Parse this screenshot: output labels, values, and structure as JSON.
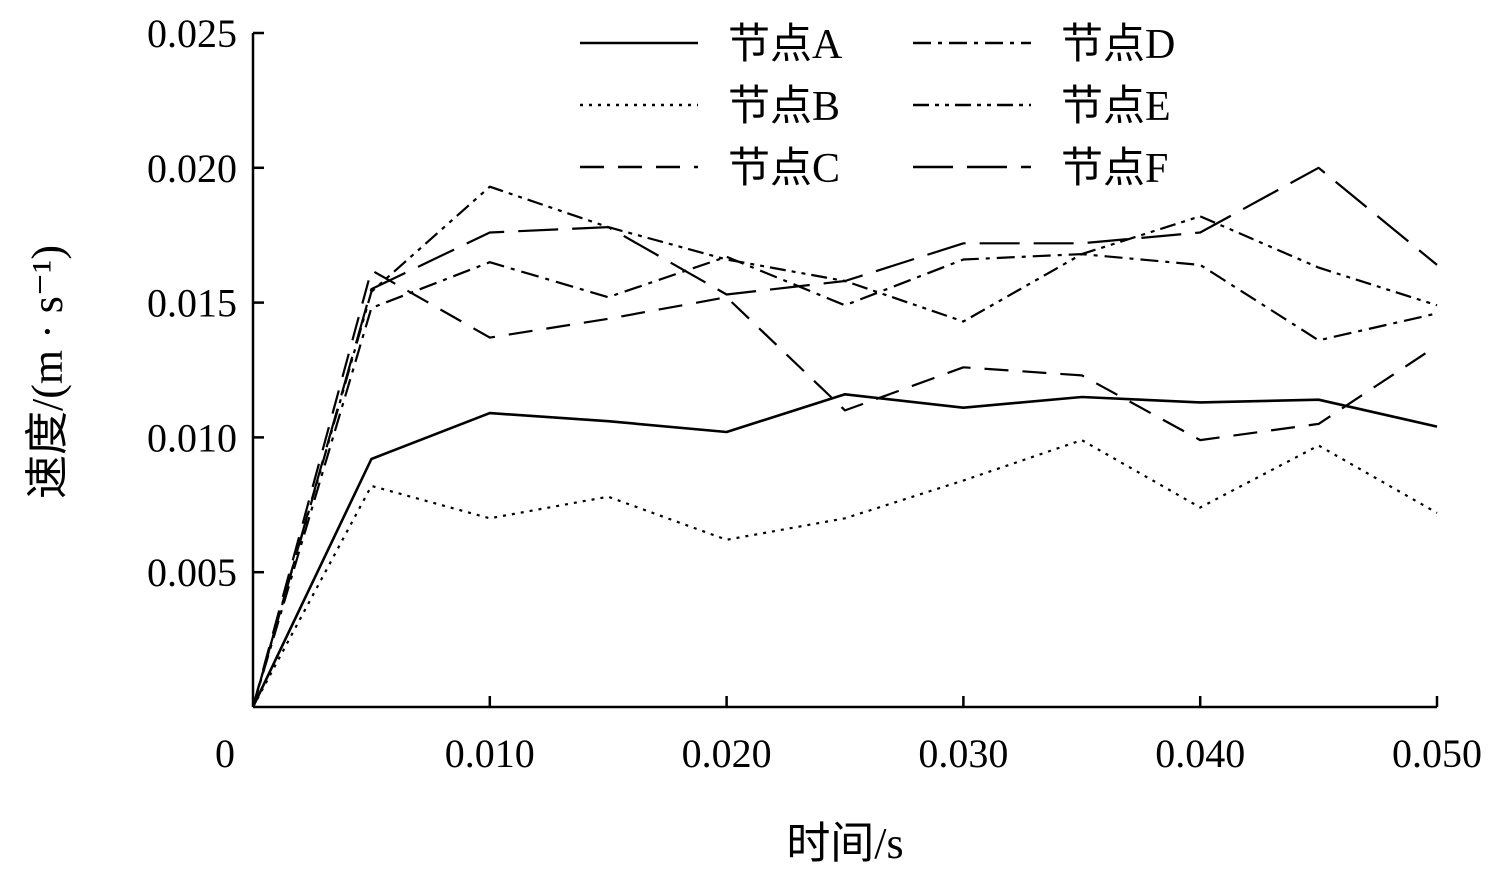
{
  "chart_data": {
    "type": "line",
    "xlabel": "时间/s",
    "ylabel": "速度/(m · s⁻¹)",
    "xlim": [
      0,
      0.05
    ],
    "ylim": [
      0,
      0.025
    ],
    "xticks": [
      "0",
      "0.010",
      "0.020",
      "0.030",
      "0.040",
      "0.050"
    ],
    "yticks": [
      "0.005",
      "0.010",
      "0.015",
      "0.020",
      "0.025"
    ],
    "grid": false,
    "legend_position": "top-right",
    "x": [
      0,
      0.005,
      0.01,
      0.015,
      0.02,
      0.025,
      0.03,
      0.035,
      0.04,
      0.045,
      0.05
    ],
    "series": [
      {
        "name": "节点A",
        "style": "solid",
        "values": [
          0,
          0.0092,
          0.0109,
          0.0106,
          0.0102,
          0.0116,
          0.0111,
          0.0115,
          0.0113,
          0.0114,
          0.0104
        ]
      },
      {
        "name": "节点B",
        "style": "dotted",
        "values": [
          0,
          0.0082,
          0.007,
          0.0078,
          0.0062,
          0.007,
          0.0084,
          0.0099,
          0.0074,
          0.0097,
          0.0072
        ]
      },
      {
        "name": "节点C",
        "style": "dashed",
        "values": [
          0,
          0.0162,
          0.0137,
          0.0144,
          0.0152,
          0.011,
          0.0126,
          0.0123,
          0.0099,
          0.0105,
          0.0134
        ]
      },
      {
        "name": "节点D",
        "style": "dashdot",
        "values": [
          0,
          0.0148,
          0.0165,
          0.0152,
          0.0167,
          0.0149,
          0.0166,
          0.0168,
          0.0164,
          0.0136,
          0.0146
        ]
      },
      {
        "name": "节点E",
        "style": "dashdotdot",
        "values": [
          0,
          0.0154,
          0.0193,
          0.0178,
          0.0166,
          0.0158,
          0.0143,
          0.0168,
          0.0182,
          0.0163,
          0.0149
        ]
      },
      {
        "name": "节点F",
        "style": "longdash",
        "values": [
          0,
          0.0155,
          0.0176,
          0.0178,
          0.0153,
          0.0158,
          0.0172,
          0.0172,
          0.0176,
          0.02,
          0.0164
        ]
      }
    ]
  }
}
